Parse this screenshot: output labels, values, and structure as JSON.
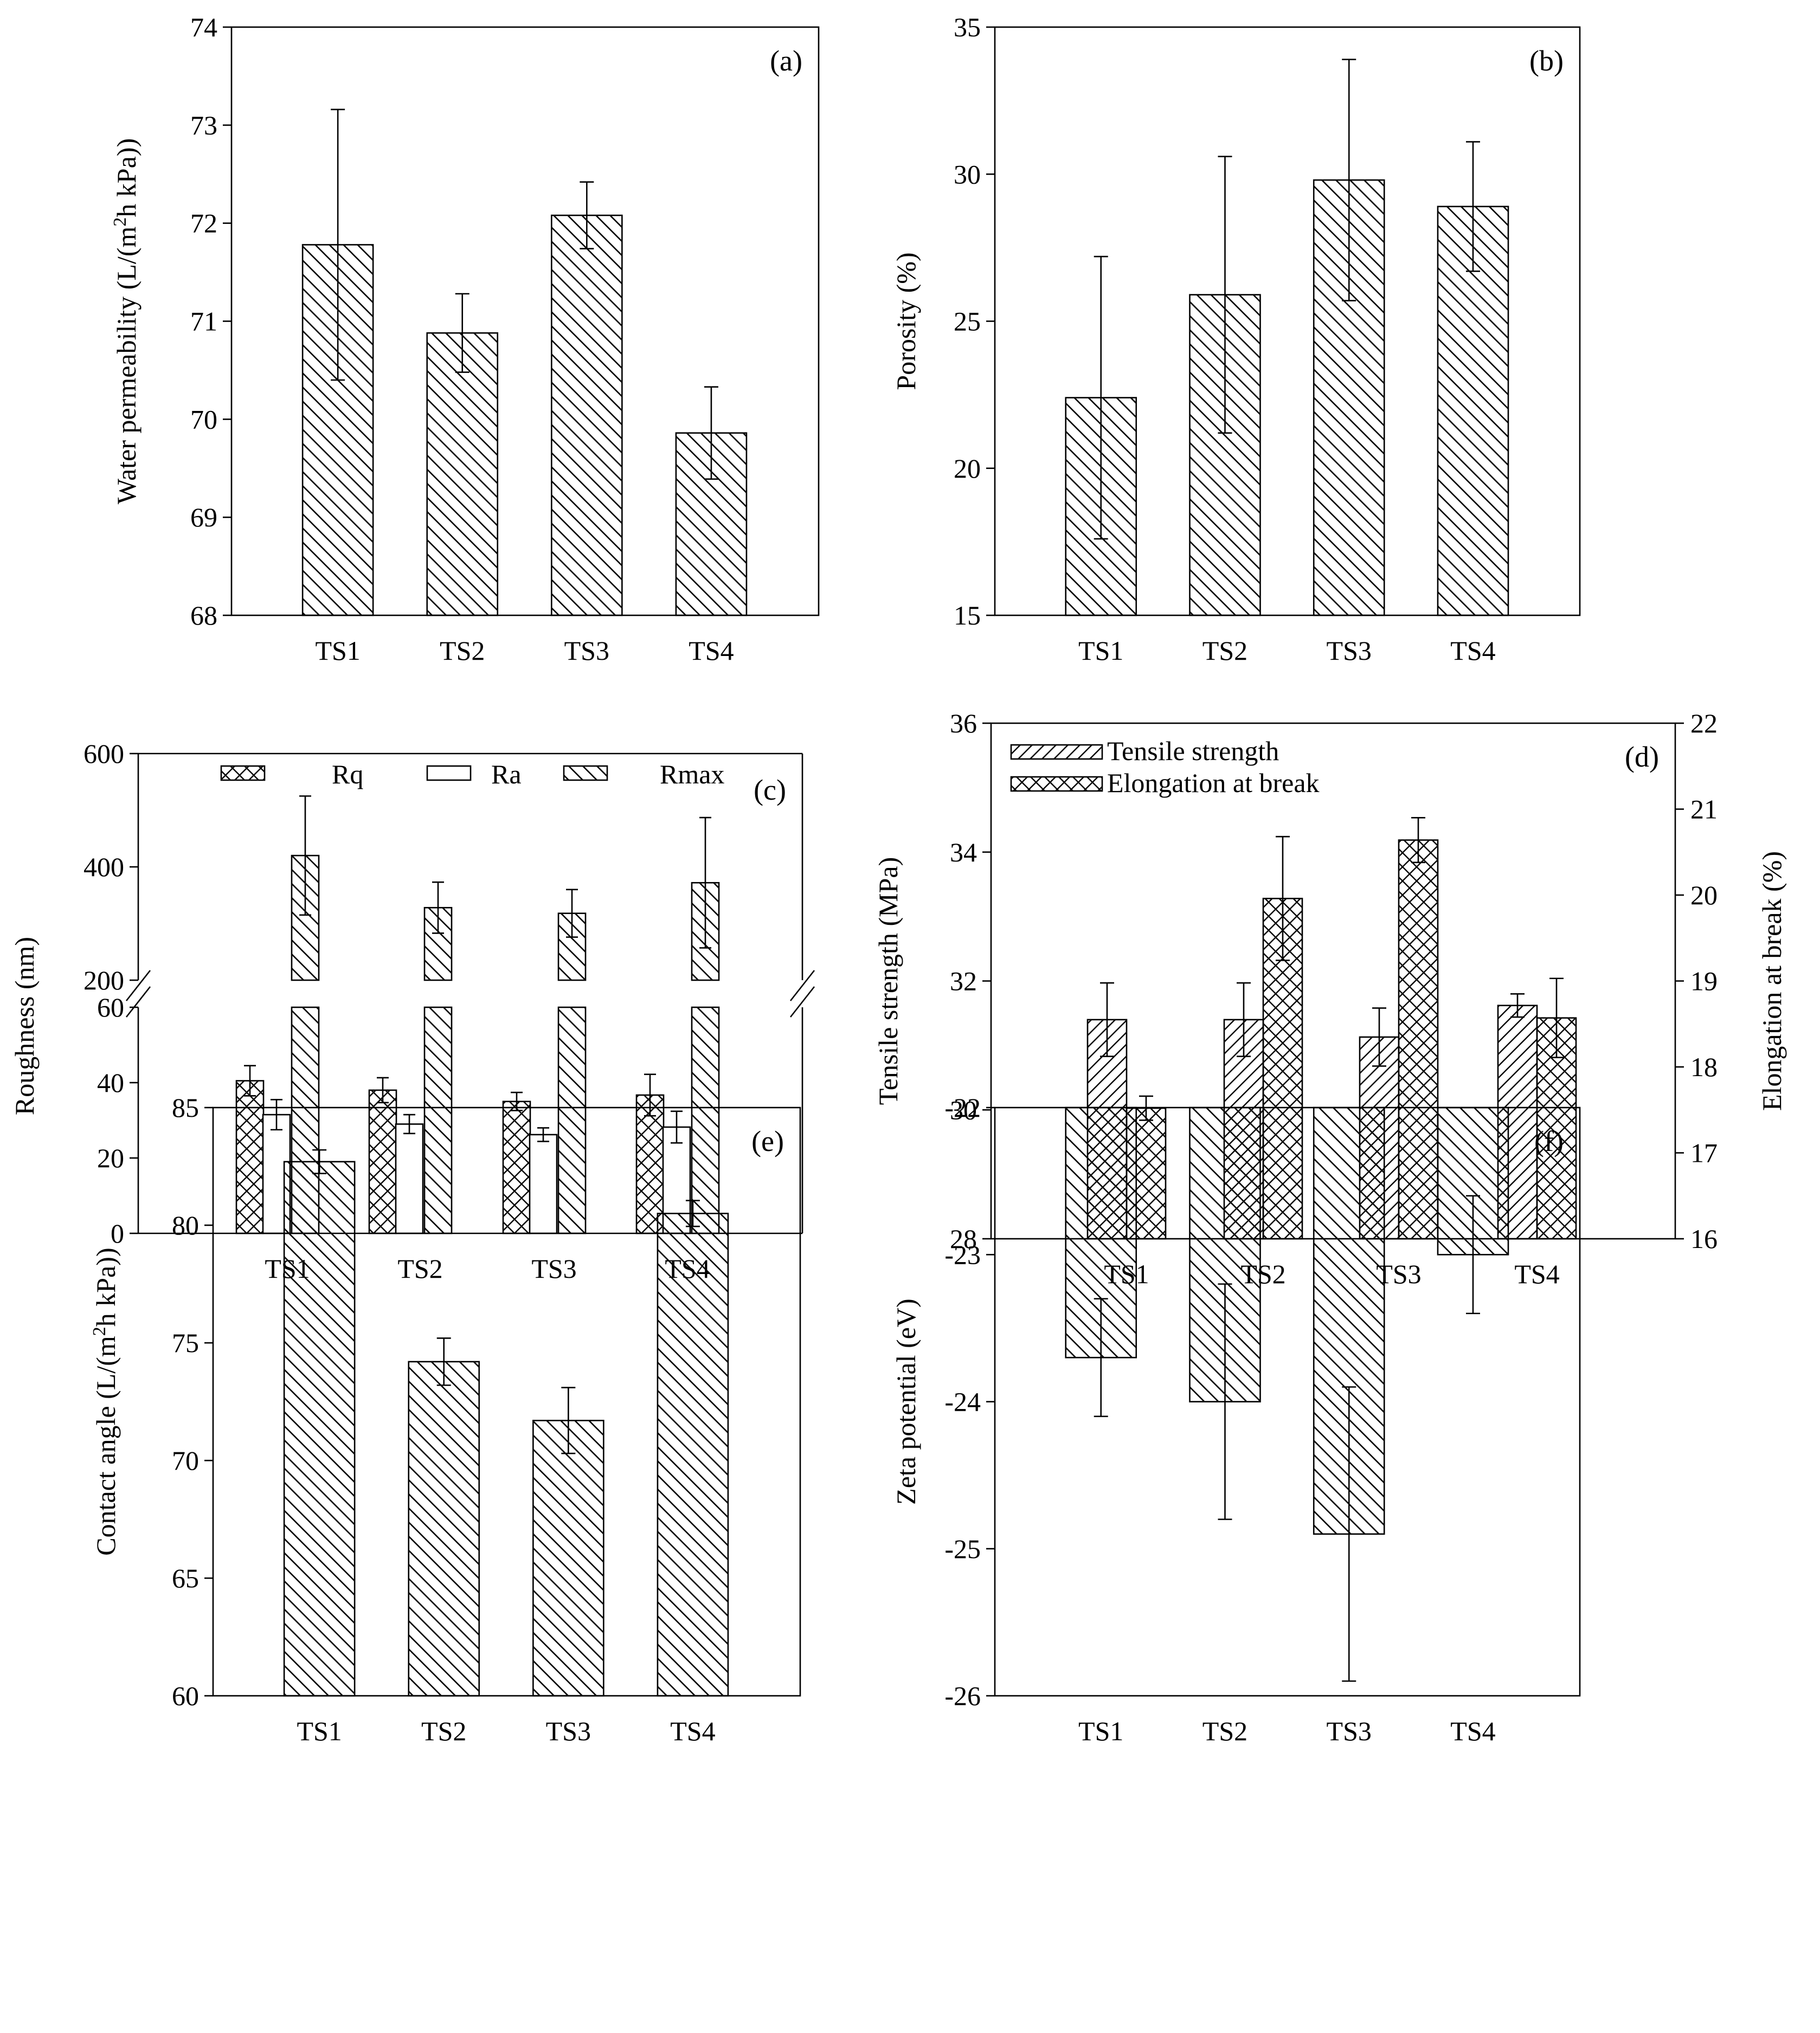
{
  "colors": {
    "ink": "#000000",
    "background": "#ffffff",
    "bar_fill": "#ffffff"
  },
  "chart_data": [
    {
      "panel": "(a)",
      "type": "bar",
      "categories": [
        "TS1",
        "TS2",
        "TS3",
        "TS4"
      ],
      "values": [
        71.78,
        70.88,
        72.08,
        69.86
      ],
      "errors": [
        1.38,
        0.4,
        0.34,
        0.47
      ],
      "pattern": "backslash",
      "ylabel": "Water permeability (L/(m2h kPa))",
      "ylabel_parts": [
        "Water permeability (L/(m",
        "2",
        "h kPa))"
      ],
      "ylim": [
        68,
        74
      ],
      "yticks": [
        68,
        69,
        70,
        71,
        72,
        73,
        74
      ]
    },
    {
      "panel": "(b)",
      "type": "bar",
      "categories": [
        "TS1",
        "TS2",
        "TS3",
        "TS4"
      ],
      "values": [
        22.4,
        25.9,
        29.8,
        28.9
      ],
      "errors": [
        4.8,
        4.7,
        4.1,
        2.2
      ],
      "pattern": "backslash",
      "ylabel": "Porosity (%)",
      "ylim": [
        15,
        35
      ],
      "yticks": [
        15,
        20,
        25,
        30,
        35
      ]
    },
    {
      "panel": "(c)",
      "type": "bar",
      "categories": [
        "TS1",
        "TS2",
        "TS3",
        "TS4"
      ],
      "series": [
        {
          "name": "Rq",
          "values": [
            40.5,
            38,
            35,
            36.7
          ],
          "errors": [
            4.0,
            3.3,
            2.4,
            5.5
          ],
          "pattern": "cross"
        },
        {
          "name": "Ra",
          "values": [
            31.5,
            29,
            26.2,
            28.2
          ],
          "errors": [
            4.0,
            2.5,
            1.8,
            4.2
          ],
          "pattern": "none"
        },
        {
          "name": "Rmax",
          "values": [
            420,
            328,
            318,
            372
          ],
          "errors": [
            105,
            45,
            42,
            115
          ],
          "pattern": "backslash"
        }
      ],
      "ylabel": "Roughness (nm)",
      "broken_axis": {
        "lower": [
          0,
          60
        ],
        "upper": [
          200,
          600
        ]
      },
      "yticks_lower": [
        0,
        20,
        40,
        60
      ],
      "yticks_upper": [
        200,
        400,
        600
      ],
      "legend_position": "top"
    },
    {
      "panel": "(d)",
      "type": "bar",
      "categories": [
        "TS1",
        "TS2",
        "TS3",
        "TS4"
      ],
      "series": [
        {
          "name": "Tensile strength",
          "axis": "left",
          "values": [
            31.4,
            31.4,
            31.13,
            31.62
          ],
          "errors": [
            0.57,
            0.57,
            0.45,
            0.18
          ],
          "pattern": "slash"
        },
        {
          "name": "Elongation at break",
          "axis": "right",
          "values": [
            17.52,
            19.96,
            20.64,
            18.57
          ],
          "errors": [
            0.14,
            0.72,
            0.26,
            0.46
          ],
          "pattern": "cross"
        }
      ],
      "ylabel": "Tensile strength (MPa)",
      "ylabel_right": "Elongation at break (%)",
      "ylim": [
        28,
        36
      ],
      "ylim_right": [
        16,
        22
      ],
      "yticks": [
        28,
        30,
        32,
        34,
        36
      ],
      "yticks_right": [
        16,
        17,
        18,
        19,
        20,
        21,
        22
      ],
      "legend_position": "top-left"
    },
    {
      "panel": "(e)",
      "type": "bar",
      "categories": [
        "TS1",
        "TS2",
        "TS3",
        "TS4"
      ],
      "values": [
        82.7,
        74.2,
        71.7,
        80.5
      ],
      "errors": [
        0.5,
        1.0,
        1.4,
        0.55
      ],
      "pattern": "backslash",
      "ylabel": "Contact angle (L/(m2h kPa))",
      "ylabel_parts": [
        "Contact angle (L/(m",
        "2",
        "h kPa))"
      ],
      "ylim": [
        60,
        85
      ],
      "yticks": [
        60,
        65,
        70,
        75,
        80,
        85
      ]
    },
    {
      "panel": "(f)",
      "type": "bar",
      "categories": [
        "TS1",
        "TS2",
        "TS3",
        "TS4"
      ],
      "values": [
        -23.7,
        -24.0,
        -24.9,
        -23.0
      ],
      "errors": [
        0.4,
        0.8,
        1.0,
        0.4
      ],
      "pattern": "backslash",
      "ylabel": "Zeta potential (eV)",
      "ylim": [
        -26,
        -22
      ],
      "yticks": [
        -26,
        -25,
        -24,
        -23,
        -22
      ]
    }
  ]
}
